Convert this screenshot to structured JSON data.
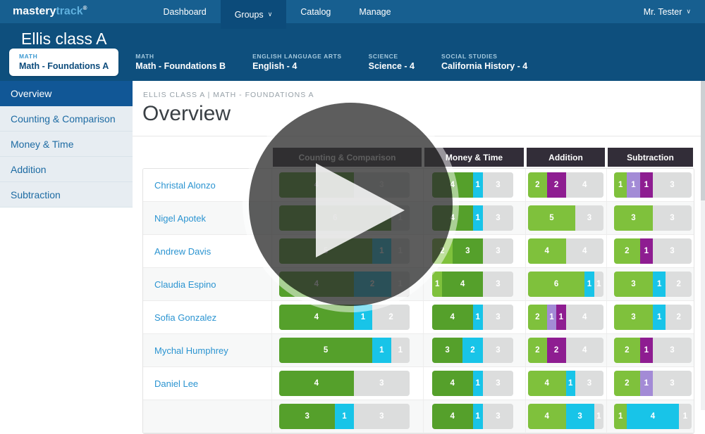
{
  "topbar": {
    "logo": {
      "primary": "mastery",
      "secondary": "track",
      "registered": "®"
    },
    "nav": [
      {
        "label": "Dashboard",
        "active": false
      },
      {
        "label": "Groups",
        "active": true
      },
      {
        "label": "Catalog",
        "active": false
      },
      {
        "label": "Manage",
        "active": false
      }
    ],
    "user": "Mr. Tester"
  },
  "icons": {
    "chevron_down": "∨"
  },
  "class_header": {
    "title": "Ellis class A",
    "tabs": [
      {
        "category": "MATH",
        "name": "Math - Foundations A",
        "active": true
      },
      {
        "category": "MATH",
        "name": "Math - Foundations B",
        "active": false
      },
      {
        "category": "ENGLISH LANGUAGE ARTS",
        "name": "English - 4",
        "active": false
      },
      {
        "category": "SCIENCE",
        "name": "Science - 4",
        "active": false
      },
      {
        "category": "SOCIAL STUDIES",
        "name": "California History - 4",
        "active": false
      }
    ]
  },
  "sidebar": {
    "items": [
      {
        "label": "Overview",
        "active": true
      },
      {
        "label": "Counting & Comparison",
        "active": false
      },
      {
        "label": "Money & Time",
        "active": false
      },
      {
        "label": "Addition",
        "active": false
      },
      {
        "label": "Subtraction",
        "active": false
      }
    ]
  },
  "main": {
    "breadcrumb": "ELLIS CLASS A | MATH - FOUNDATIONS A",
    "title": "Overview"
  },
  "table": {
    "columns": [
      {
        "key": "cc",
        "label": "Counting & Comparison",
        "total": 7
      },
      {
        "key": "mt",
        "label": "Money & Time",
        "total": 8
      },
      {
        "key": "add",
        "label": "Addition",
        "total": 8
      },
      {
        "key": "sub",
        "label": "Subtraction",
        "total": 6
      }
    ],
    "rows": [
      {
        "student": "Christal Alonzo",
        "bars": {
          "cc": [
            {
              "color": "green",
              "value": 4
            },
            {
              "color": "gray",
              "value": 3
            }
          ],
          "mt": [
            {
              "color": "green",
              "value": 4
            },
            {
              "color": "cyan",
              "value": 1
            },
            {
              "color": "gray",
              "value": 3
            }
          ],
          "add": [
            {
              "color": "lightgreen",
              "value": 2
            },
            {
              "color": "purple",
              "value": 2
            },
            {
              "color": "gray",
              "value": 4
            }
          ],
          "sub": [
            {
              "color": "lightgreen",
              "value": 1
            },
            {
              "color": "lavender",
              "value": 1
            },
            {
              "color": "purple",
              "value": 1
            },
            {
              "color": "gray",
              "value": 3
            }
          ]
        }
      },
      {
        "student": "Nigel Apotek",
        "bars": {
          "cc": [
            {
              "color": "green",
              "value": 6
            },
            {
              "color": "gray",
              "value": 1
            }
          ],
          "mt": [
            {
              "color": "green",
              "value": 4
            },
            {
              "color": "cyan",
              "value": 1
            },
            {
              "color": "gray",
              "value": 3
            }
          ],
          "add": [
            {
              "color": "lightgreen",
              "value": 5
            },
            {
              "color": "gray",
              "value": 3
            }
          ],
          "sub": [
            {
              "color": "lightgreen",
              "value": 3
            },
            {
              "color": "gray",
              "value": 3
            }
          ]
        }
      },
      {
        "student": "Andrew Davis",
        "bars": {
          "cc": [
            {
              "color": "green",
              "value": 5
            },
            {
              "color": "cyan",
              "value": 1
            },
            {
              "color": "gray",
              "value": 1
            }
          ],
          "mt": [
            {
              "color": "lightgreen",
              "value": 2
            },
            {
              "color": "green",
              "value": 3
            },
            {
              "color": "gray",
              "value": 3
            }
          ],
          "add": [
            {
              "color": "lightgreen",
              "value": 4
            },
            {
              "color": "gray",
              "value": 4
            }
          ],
          "sub": [
            {
              "color": "lightgreen",
              "value": 2
            },
            {
              "color": "purple",
              "value": 1
            },
            {
              "color": "gray",
              "value": 3
            }
          ]
        }
      },
      {
        "student": "Claudia Espino",
        "bars": {
          "cc": [
            {
              "color": "green",
              "value": 4
            },
            {
              "color": "cyan",
              "value": 2
            },
            {
              "color": "gray",
              "value": 1
            }
          ],
          "mt": [
            {
              "color": "lightgreen",
              "value": 1
            },
            {
              "color": "green",
              "value": 4
            },
            {
              "color": "gray",
              "value": 3
            }
          ],
          "add": [
            {
              "color": "lightgreen",
              "value": 6
            },
            {
              "color": "cyan",
              "value": 1
            },
            {
              "color": "gray",
              "value": 1
            }
          ],
          "sub": [
            {
              "color": "lightgreen",
              "value": 3
            },
            {
              "color": "cyan",
              "value": 1
            },
            {
              "color": "gray",
              "value": 2
            }
          ]
        }
      },
      {
        "student": "Sofia Gonzalez",
        "bars": {
          "cc": [
            {
              "color": "green",
              "value": 4
            },
            {
              "color": "cyan",
              "value": 1
            },
            {
              "color": "gray",
              "value": 2
            }
          ],
          "mt": [
            {
              "color": "green",
              "value": 4
            },
            {
              "color": "cyan",
              "value": 1
            },
            {
              "color": "gray",
              "value": 3
            }
          ],
          "add": [
            {
              "color": "lightgreen",
              "value": 2
            },
            {
              "color": "lavender",
              "value": 1
            },
            {
              "color": "purple",
              "value": 1
            },
            {
              "color": "gray",
              "value": 4
            }
          ],
          "sub": [
            {
              "color": "lightgreen",
              "value": 3
            },
            {
              "color": "cyan",
              "value": 1
            },
            {
              "color": "gray",
              "value": 2
            }
          ]
        }
      },
      {
        "student": "Mychal Humphrey",
        "bars": {
          "cc": [
            {
              "color": "green",
              "value": 5
            },
            {
              "color": "cyan",
              "value": 1
            },
            {
              "color": "gray",
              "value": 1
            }
          ],
          "mt": [
            {
              "color": "green",
              "value": 3
            },
            {
              "color": "cyan",
              "value": 2
            },
            {
              "color": "gray",
              "value": 3
            }
          ],
          "add": [
            {
              "color": "lightgreen",
              "value": 2
            },
            {
              "color": "purple",
              "value": 2
            },
            {
              "color": "gray",
              "value": 4
            }
          ],
          "sub": [
            {
              "color": "lightgreen",
              "value": 2
            },
            {
              "color": "purple",
              "value": 1
            },
            {
              "color": "gray",
              "value": 3
            }
          ]
        }
      },
      {
        "student": "Daniel Lee",
        "bars": {
          "cc": [
            {
              "color": "green",
              "value": 4
            },
            {
              "color": "gray",
              "value": 3
            }
          ],
          "mt": [
            {
              "color": "green",
              "value": 4
            },
            {
              "color": "cyan",
              "value": 1
            },
            {
              "color": "gray",
              "value": 3
            }
          ],
          "add": [
            {
              "color": "lightgreen",
              "value": 4
            },
            {
              "color": "cyan",
              "value": 1
            },
            {
              "color": "gray",
              "value": 3
            }
          ],
          "sub": [
            {
              "color": "lightgreen",
              "value": 2
            },
            {
              "color": "lavender",
              "value": 1
            },
            {
              "color": "gray",
              "value": 3
            }
          ]
        }
      },
      {
        "student": "",
        "bars": {
          "cc": [
            {
              "color": "green",
              "value": 3
            },
            {
              "color": "cyan",
              "value": 1
            },
            {
              "color": "gray",
              "value": 3
            }
          ],
          "mt": [
            {
              "color": "green",
              "value": 4
            },
            {
              "color": "cyan",
              "value": 1
            },
            {
              "color": "gray",
              "value": 3
            }
          ],
          "add": [
            {
              "color": "lightgreen",
              "value": 4
            },
            {
              "color": "cyan",
              "value": 3
            },
            {
              "color": "gray",
              "value": 1
            }
          ],
          "sub": [
            {
              "color": "lightgreen",
              "value": 1
            },
            {
              "color": "cyan",
              "value": 4
            },
            {
              "color": "gray",
              "value": 1
            }
          ]
        }
      }
    ]
  },
  "colors": {
    "segment_palette": {
      "green": "#55a02b",
      "lightgreen": "#7fc13c",
      "cyan": "#18c4e8",
      "purple": "#8e1d91",
      "lavender": "#a38bd6",
      "gray": "#dcdddd"
    },
    "topbar_blue": "#175f90",
    "band_blue": "#0e4f7d",
    "sidebar_active_blue": "#115796",
    "link_blue": "#2b94d1",
    "table_header_dark": "#322d38"
  }
}
